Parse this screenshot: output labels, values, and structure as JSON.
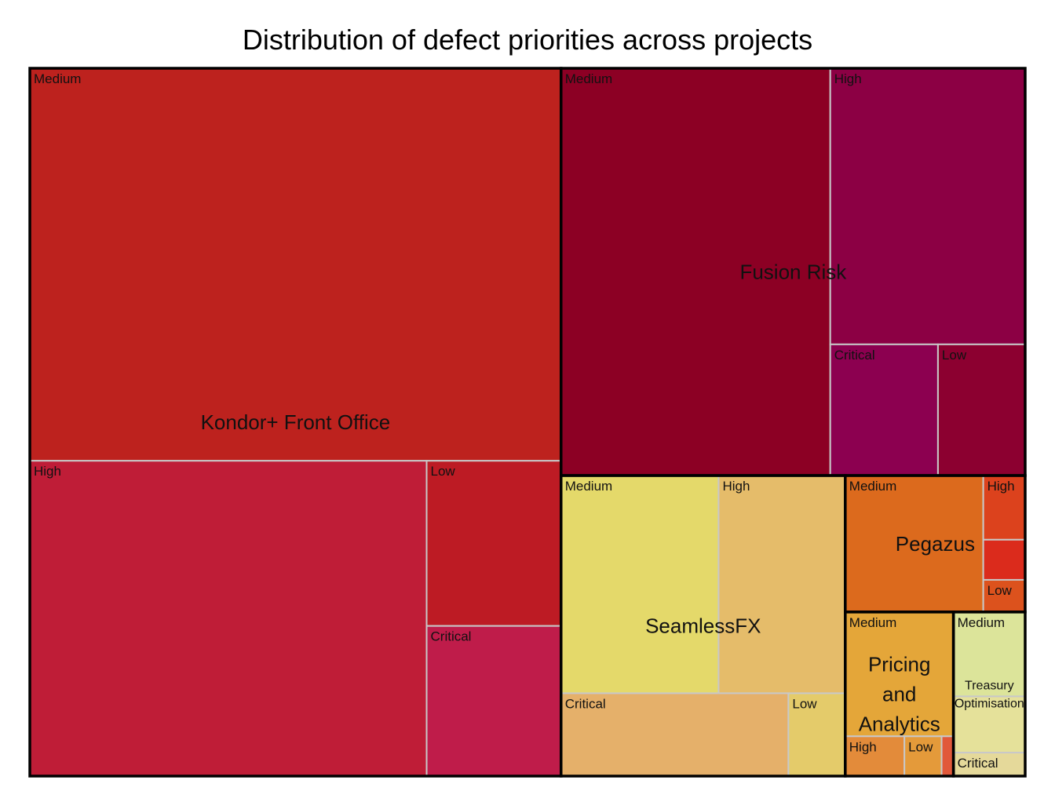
{
  "chart_data": {
    "type": "treemap",
    "title": "Distribution of defect priorities across projects",
    "projects": [
      {
        "name": "Kondor+ Front Office",
        "label_lines": [
          "Kondor+ Front Office"
        ],
        "children": [
          {
            "label": "Medium",
            "value": 310,
            "color": "#bd221e"
          },
          {
            "label": "High",
            "value": 186,
            "color": "#bf1d37"
          },
          {
            "label": "Low",
            "value": 33,
            "color": "#bd1b24"
          },
          {
            "label": "Critical",
            "value": 30,
            "color": "#bf1c4a"
          }
        ]
      },
      {
        "name": "Fusion Risk",
        "label_lines": [
          "Fusion Risk"
        ],
        "children": [
          {
            "label": "Medium",
            "value": 163,
            "color": "#8c0024"
          },
          {
            "label": "High",
            "value": 80,
            "color": "#8c0044"
          },
          {
            "label": "Critical",
            "value": 21,
            "color": "#8c0050"
          },
          {
            "label": "Low",
            "value": 17,
            "color": "#8c0030"
          }
        ]
      },
      {
        "name": "SeamlessFX",
        "label_lines": [
          "SeamlessFX"
        ],
        "children": [
          {
            "label": "Medium",
            "value": 51,
            "color": "#e4d96a"
          },
          {
            "label": "High",
            "value": 41,
            "color": "#e5bc6a"
          },
          {
            "label": "Critical",
            "value": 28,
            "color": "#e5b06a"
          },
          {
            "label": "Low",
            "value": 7,
            "color": "#e4cb6a"
          }
        ]
      },
      {
        "name": "Pegazus",
        "label_lines": [
          "Pegazus"
        ],
        "children": [
          {
            "label": "Medium",
            "value": 28,
            "color": "#dc6a1d"
          },
          {
            "label": "High",
            "value": 4,
            "color": "#dc421d"
          },
          {
            "label": "",
            "value": 2.5,
            "color": "#db2b1c"
          },
          {
            "label": "Low",
            "value": 2,
            "color": "#dc521d"
          }
        ]
      },
      {
        "name": "Pricing and Analytics",
        "label_lines": [
          "Pricing",
          "and",
          "Analytics"
        ],
        "children": [
          {
            "label": "Medium",
            "value": 20,
            "color": "#e4a639"
          },
          {
            "label": "High",
            "value": 3.5,
            "color": "#e38b3a"
          },
          {
            "label": "Low",
            "value": 2.2,
            "color": "#e49a3a"
          },
          {
            "label": "",
            "value": 0.7,
            "color": "#e1583a"
          }
        ]
      },
      {
        "name": "Treasury Optimisation",
        "label_lines": [
          "Treasury",
          "Optimisation"
        ],
        "children": [
          {
            "label": "Medium",
            "value": 9,
            "color": "#dce49a"
          },
          {
            "label": "",
            "value": 6,
            "color": "#e5e19a"
          },
          {
            "label": "Critical",
            "value": 2.5,
            "color": "#e5d99a"
          }
        ]
      }
    ]
  }
}
